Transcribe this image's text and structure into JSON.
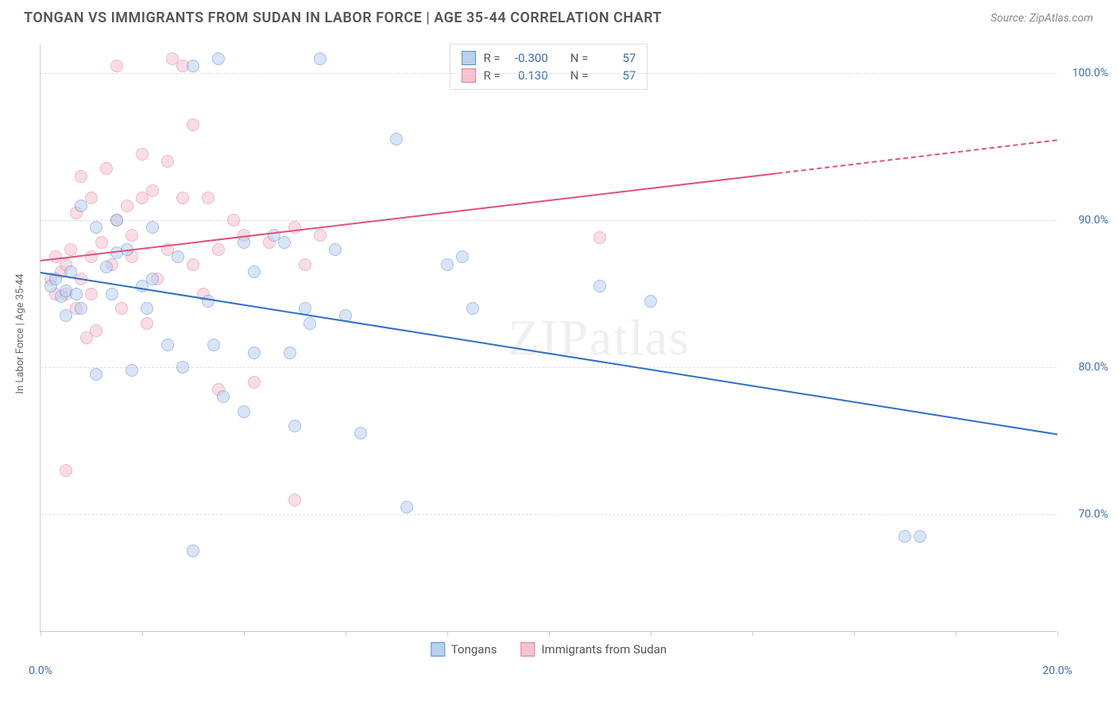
{
  "header": {
    "title": "TONGAN VS IMMIGRANTS FROM SUDAN IN LABOR FORCE | AGE 35-44 CORRELATION CHART",
    "source": "Source: ZipAtlas.com"
  },
  "watermark": "ZIPatlas",
  "chart": {
    "type": "scatter",
    "ylabel": "In Labor Force | Age 35-44",
    "xlim": [
      0,
      20
    ],
    "ylim": [
      62,
      102
    ],
    "xticks": [
      0,
      2,
      4,
      6,
      8,
      10,
      12,
      14,
      16,
      18,
      20
    ],
    "xtick_labels": {
      "0": "0.0%",
      "20": "20.0%"
    },
    "yticks": [
      70,
      80,
      90,
      100
    ],
    "ytick_labels": [
      "70.0%",
      "80.0%",
      "90.0%",
      "100.0%"
    ],
    "background_color": "#ffffff",
    "grid_color": "#dddddd",
    "marker_radius": 8,
    "marker_opacity": 0.55,
    "axis_label_color": "#3b6db0",
    "series": {
      "a": {
        "label": "Tongans",
        "fill": "#b9d0f0",
        "stroke": "#5a8ed6",
        "r_value": "-0.300",
        "n_value": "57",
        "trend": {
          "x1": 0,
          "y1": 86.5,
          "x2": 20,
          "y2": 75.5,
          "dashed": false,
          "color": "#2e6fc7",
          "width": 2
        },
        "points": [
          [
            0.2,
            85.5
          ],
          [
            0.3,
            86.0
          ],
          [
            0.4,
            84.8
          ],
          [
            0.5,
            85.2
          ],
          [
            0.5,
            83.5
          ],
          [
            0.6,
            86.5
          ],
          [
            0.7,
            85.0
          ],
          [
            0.8,
            84.0
          ],
          [
            0.8,
            91.0
          ],
          [
            1.1,
            79.5
          ],
          [
            1.1,
            89.5
          ],
          [
            1.3,
            86.8
          ],
          [
            1.4,
            85.0
          ],
          [
            1.5,
            90.0
          ],
          [
            1.5,
            87.8
          ],
          [
            1.7,
            88.0
          ],
          [
            1.8,
            79.8
          ],
          [
            2.0,
            85.5
          ],
          [
            2.1,
            84.0
          ],
          [
            2.2,
            86.0
          ],
          [
            2.2,
            89.5
          ],
          [
            2.5,
            81.5
          ],
          [
            2.7,
            87.5
          ],
          [
            2.8,
            80.0
          ],
          [
            3.0,
            100.5
          ],
          [
            3.0,
            67.5
          ],
          [
            3.3,
            84.5
          ],
          [
            3.4,
            81.5
          ],
          [
            3.5,
            101.0
          ],
          [
            3.6,
            78.0
          ],
          [
            4.0,
            77.0
          ],
          [
            4.0,
            88.5
          ],
          [
            4.2,
            81.0
          ],
          [
            4.2,
            86.5
          ],
          [
            4.6,
            89.0
          ],
          [
            4.8,
            88.5
          ],
          [
            4.9,
            81.0
          ],
          [
            5.0,
            76.0
          ],
          [
            5.2,
            84.0
          ],
          [
            5.3,
            83.0
          ],
          [
            5.5,
            101.0
          ],
          [
            5.8,
            88.0
          ],
          [
            6.0,
            83.5
          ],
          [
            6.3,
            75.5
          ],
          [
            7.0,
            95.5
          ],
          [
            7.2,
            70.5
          ],
          [
            8.0,
            87.0
          ],
          [
            8.3,
            87.5
          ],
          [
            8.5,
            84.0
          ],
          [
            11.0,
            85.5
          ],
          [
            12.0,
            84.5
          ],
          [
            17.0,
            68.5
          ],
          [
            17.3,
            68.5
          ]
        ]
      },
      "b": {
        "label": "Immigrants from Sudan",
        "fill": "#f5c3cf",
        "stroke": "#e77a96",
        "r_value": "0.130",
        "n_value": "57",
        "trend": {
          "x1": 0,
          "y1": 87.3,
          "x2": 20,
          "y2": 95.5,
          "dashed_from_x": 14.5,
          "color": "#e0517a",
          "width": 2
        },
        "points": [
          [
            0.2,
            86.0
          ],
          [
            0.3,
            85.0
          ],
          [
            0.3,
            87.5
          ],
          [
            0.4,
            86.5
          ],
          [
            0.5,
            85.0
          ],
          [
            0.5,
            87.0
          ],
          [
            0.5,
            73.0
          ],
          [
            0.6,
            88.0
          ],
          [
            0.7,
            84.0
          ],
          [
            0.7,
            90.5
          ],
          [
            0.8,
            86.0
          ],
          [
            0.8,
            93.0
          ],
          [
            0.9,
            82.0
          ],
          [
            1.0,
            87.5
          ],
          [
            1.0,
            85.0
          ],
          [
            1.0,
            91.5
          ],
          [
            1.1,
            82.5
          ],
          [
            1.2,
            88.5
          ],
          [
            1.3,
            93.5
          ],
          [
            1.4,
            87.0
          ],
          [
            1.5,
            90.0
          ],
          [
            1.5,
            100.5
          ],
          [
            1.6,
            84.0
          ],
          [
            1.7,
            91.0
          ],
          [
            1.8,
            89.0
          ],
          [
            1.8,
            87.5
          ],
          [
            2.0,
            91.5
          ],
          [
            2.0,
            94.5
          ],
          [
            2.1,
            83.0
          ],
          [
            2.2,
            92.0
          ],
          [
            2.3,
            86.0
          ],
          [
            2.5,
            88.0
          ],
          [
            2.5,
            94.0
          ],
          [
            2.6,
            101.0
          ],
          [
            2.8,
            91.5
          ],
          [
            2.8,
            100.5
          ],
          [
            3.0,
            87.0
          ],
          [
            3.0,
            96.5
          ],
          [
            3.2,
            85.0
          ],
          [
            3.3,
            91.5
          ],
          [
            3.5,
            88.0
          ],
          [
            3.5,
            78.5
          ],
          [
            3.8,
            90.0
          ],
          [
            4.0,
            89.0
          ],
          [
            4.2,
            79.0
          ],
          [
            4.5,
            88.5
          ],
          [
            5.0,
            89.5
          ],
          [
            5.0,
            71.0
          ],
          [
            5.2,
            87.0
          ],
          [
            5.5,
            89.0
          ],
          [
            11.0,
            88.8
          ]
        ]
      }
    },
    "legend_top": {
      "r_label": "R =",
      "n_label": "N ="
    },
    "legend_bottom_order": [
      "a",
      "b"
    ]
  }
}
